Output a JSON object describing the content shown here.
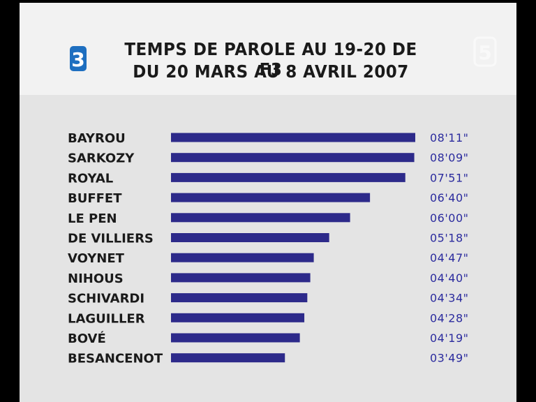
{
  "header": {
    "title_line1": "TEMPS DE PAROLE AU 19-20 DE F3",
    "title_line2": "DU 20 MARS AU 8 AVRIL 2007",
    "logo_left_text": "3",
    "logo_right_text": "5",
    "logo_left_color": "#1e6fc0"
  },
  "chart_data": {
    "type": "bar",
    "orientation": "horizontal",
    "title": "TEMPS DE PAROLE AU 19-20 DE F3",
    "subtitle": "DU 20 MARS AU 8 AVRIL 2007",
    "bar_color": "#2d2a8a",
    "value_color": "#2b2b9e",
    "categories": [
      "BAYROU",
      "SARKOZY",
      "ROYAL",
      "BUFFET",
      "LE PEN",
      "DE VILLIERS",
      "VOYNET",
      "NIHOUS",
      "SCHIVARDI",
      "LAGUILLER",
      "BOVÉ",
      "BESANCENOT"
    ],
    "values_seconds": [
      491,
      489,
      471,
      400,
      360,
      318,
      287,
      280,
      274,
      268,
      259,
      229
    ],
    "value_labels": [
      "08'11\"",
      "08'09\"",
      "07'51\"",
      "06'40\"",
      "06'00\"",
      "05'18\"",
      "04'47\"",
      "04'40\"",
      "04'34\"",
      "04'28\"",
      "04'19\"",
      "03'49\""
    ]
  }
}
